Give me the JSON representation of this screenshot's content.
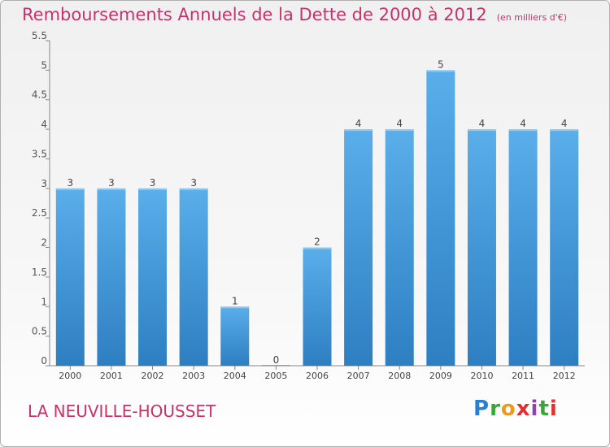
{
  "header": {
    "title": "Remboursements Annuels de la Dette de 2000 à 2012",
    "units": "(en milliers d'€)"
  },
  "footer": {
    "commune": "LA NEUVILLE-HOUSSET",
    "logo_text": "Proxiti"
  },
  "colors": {
    "title": "#c4346b",
    "bar_top": "#5aaeea",
    "bar_bottom": "#2d7fc2",
    "axis": "#888888"
  },
  "chart_data": {
    "type": "bar",
    "title": "Remboursements Annuels de la Dette de 2000 à 2012",
    "xlabel": "",
    "ylabel": "",
    "categories": [
      "2000",
      "2001",
      "2002",
      "2003",
      "2004",
      "2005",
      "2006",
      "2007",
      "2008",
      "2009",
      "2010",
      "2011",
      "2012"
    ],
    "values": [
      3,
      3,
      3,
      3,
      1,
      0,
      2,
      4,
      4,
      5,
      4,
      4,
      4
    ],
    "data_labels": [
      "3",
      "3",
      "3",
      "3",
      "1",
      "0",
      "2",
      "4",
      "4",
      "5",
      "4",
      "4",
      "4"
    ],
    "ylim": [
      0,
      5.5
    ],
    "yticks": [
      0,
      0.5,
      1,
      1.5,
      2,
      2.5,
      3,
      3.5,
      4,
      4.5,
      5,
      5.5
    ],
    "ytick_labels": [
      "0",
      "0.5",
      "1",
      "1.5",
      "2",
      "2.5",
      "3",
      "3.5",
      "4",
      "4.5",
      "5",
      "5.5"
    ],
    "grid": false,
    "legend": "none"
  }
}
